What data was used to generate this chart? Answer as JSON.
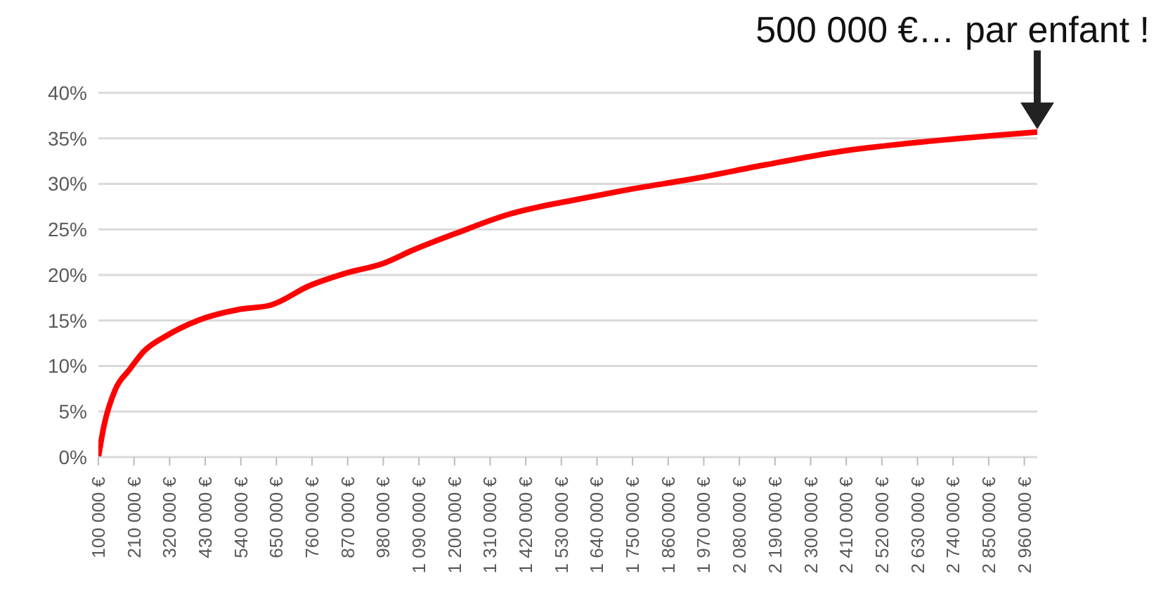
{
  "chart_data": {
    "type": "line",
    "x": [
      100000,
      117000,
      152000,
      196000,
      240000,
      314000,
      414000,
      532000,
      633000,
      751000,
      865000,
      982000,
      1070000,
      1214000,
      1362000,
      1594000,
      1725000,
      1943000,
      2161000,
      2380000,
      2672000,
      3000000
    ],
    "series": [
      {
        "color": "#ff0000",
        "values": [
          0,
          3.4,
          7.4,
          9.6,
          11.6,
          13.4,
          15.1,
          16.2,
          16.7,
          18.8,
          20.2,
          21.3,
          22.7,
          24.7,
          26.6,
          28.4,
          29.3,
          30.6,
          32.1,
          33.5,
          34.7,
          35.7
        ]
      }
    ],
    "xlim": [
      100000,
      3000000
    ],
    "xticks": [
      {
        "value": 100000,
        "label": "100 000 €"
      },
      {
        "value": 210000,
        "label": "210 000 €"
      },
      {
        "value": 320000,
        "label": "320 000 €"
      },
      {
        "value": 430000,
        "label": "430 000 €"
      },
      {
        "value": 540000,
        "label": "540 000 €"
      },
      {
        "value": 650000,
        "label": "650 000 €"
      },
      {
        "value": 760000,
        "label": "760 000 €"
      },
      {
        "value": 870000,
        "label": "870 000 €"
      },
      {
        "value": 980000,
        "label": "980 000 €"
      },
      {
        "value": 1090000,
        "label": "1 090 000 €"
      },
      {
        "value": 1200000,
        "label": "1 200 000 €"
      },
      {
        "value": 1310000,
        "label": "1 310 000 €"
      },
      {
        "value": 1420000,
        "label": "1 420 000 €"
      },
      {
        "value": 1530000,
        "label": "1 530 000 €"
      },
      {
        "value": 1640000,
        "label": "1 640 000 €"
      },
      {
        "value": 1750000,
        "label": "1 750 000 €"
      },
      {
        "value": 1860000,
        "label": "1 860 000 €"
      },
      {
        "value": 1970000,
        "label": "1 970 000 €"
      },
      {
        "value": 2080000,
        "label": "2 080 000 €"
      },
      {
        "value": 2190000,
        "label": "2 190 000 €"
      },
      {
        "value": 2300000,
        "label": "2 300 000 €"
      },
      {
        "value": 2410000,
        "label": "2 410 000 €"
      },
      {
        "value": 2520000,
        "label": "2 520 000 €"
      },
      {
        "value": 2630000,
        "label": "2 630 000 €"
      },
      {
        "value": 2740000,
        "label": "2 740 000 €"
      },
      {
        "value": 2850000,
        "label": "2 850 000 €"
      },
      {
        "value": 2960000,
        "label": "2 960 000 €"
      }
    ],
    "ylim": [
      0,
      40
    ],
    "yticks": [
      {
        "value": 0,
        "label": "0%"
      },
      {
        "value": 5,
        "label": "5%"
      },
      {
        "value": 10,
        "label": "10%"
      },
      {
        "value": 15,
        "label": "15%"
      },
      {
        "value": 20,
        "label": "20%"
      },
      {
        "value": 25,
        "label": "25%"
      },
      {
        "value": 30,
        "label": "30%"
      },
      {
        "value": 35,
        "label": "35%"
      },
      {
        "value": 40,
        "label": "40%"
      }
    ],
    "grid": "y",
    "annotations": [
      {
        "text": "500 000 €… par enfant !",
        "x": 3000000,
        "y": 35.7
      }
    ]
  }
}
